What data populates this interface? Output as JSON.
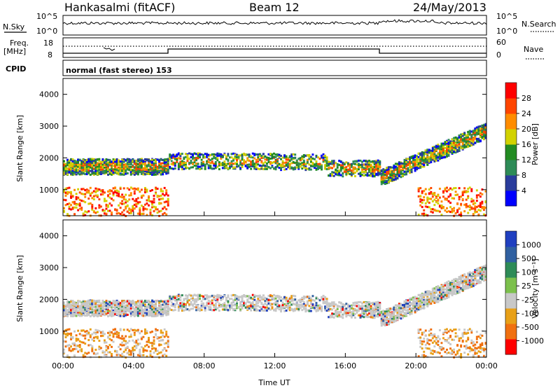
{
  "header": {
    "station": "Hankasalmi (fitACF)",
    "beam": "Beam 12",
    "date": "24/May/2013"
  },
  "noise_panel": {
    "left_label": "N.Sky",
    "right_label": "N.Search",
    "left_ticks": [
      "10^5",
      "10^0"
    ],
    "right_ticks": [
      "10^5",
      "10^0"
    ]
  },
  "freq_panel": {
    "left_label_1": "Freq.",
    "left_label_2": "[MHz]",
    "left_ticks": [
      "18",
      "8"
    ],
    "right_label": "Nave",
    "right_ticks": [
      "60",
      "0"
    ]
  },
  "cpid": {
    "label": "CPID",
    "program": "normal (fast stereo) 153"
  },
  "colors": {
    "power": [
      "#0000ff",
      "#2a3c9c",
      "#2e8b57",
      "#228b22",
      "#d2d200",
      "#ff8c00",
      "#ff4500",
      "#ff0000"
    ],
    "velocity": [
      "#2040c0",
      "#3060a0",
      "#2e8b57",
      "#7cc04c",
      "#c8c8c8",
      "#e8a018",
      "#f07010",
      "#ff0000"
    ]
  },
  "chart_data": [
    {
      "type": "heatmap",
      "name": "power",
      "xlabel": "",
      "ylabel": "Slant Range [km]",
      "x_range": [
        "00:00",
        "24:00"
      ],
      "ylim": [
        180,
        4500
      ],
      "yticks": [
        "1000",
        "2000",
        "3000",
        "4000"
      ],
      "colorbar": {
        "label": "Power [dB]",
        "ticks": [
          "4",
          "8",
          "12",
          "16",
          "20",
          "24",
          "28"
        ],
        "range": [
          0,
          32
        ]
      }
    },
    {
      "type": "heatmap",
      "name": "velocity",
      "xlabel": "Time UT",
      "ylabel": "Slant Range [km]",
      "x_range": [
        "00:00",
        "24:00"
      ],
      "xticks": [
        "00:00",
        "04:00",
        "08:00",
        "12:00",
        "16:00",
        "20:00",
        "00:00"
      ],
      "ylim": [
        180,
        4500
      ],
      "yticks": [
        "1000",
        "2000",
        "3000",
        "4000"
      ],
      "colorbar": {
        "label": "Velocity [m s⁻¹]",
        "ticks": [
          "1000",
          "500",
          "100",
          "25",
          "-25",
          "-100",
          "-500",
          "-1000"
        ]
      },
      "bands": [
        {
          "t0": 0.0,
          "t1": 6.0,
          "r0": 1500,
          "r1": 2000
        },
        {
          "t0": 6.0,
          "t1": 12.0,
          "r0": 1800,
          "r1": 2050
        },
        {
          "t0": 12.0,
          "t1": 15.0,
          "r0": 1700,
          "r1": 2100
        },
        {
          "t0": 15.0,
          "t1": 18.0,
          "r0": 1500,
          "r1": 1900
        },
        {
          "t0": 18.0,
          "t1": 24.0,
          "r0": 1400,
          "r1": 2900
        }
      ]
    }
  ]
}
